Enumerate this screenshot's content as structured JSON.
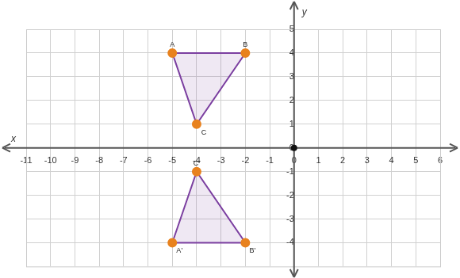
{
  "chart_data": {
    "type": "scatter",
    "xlabel": "x",
    "ylabel": "y",
    "xlim": [
      -11,
      6
    ],
    "ylim": [
      -5,
      5
    ],
    "xticks": [
      -11,
      -10,
      -9,
      -8,
      -7,
      -6,
      -5,
      -4,
      -3,
      -2,
      -1,
      0,
      1,
      2,
      3,
      4,
      5,
      6
    ],
    "yticks": [
      -4,
      -3,
      -2,
      -1,
      0,
      1,
      2,
      3,
      4,
      5
    ],
    "grid": true,
    "series": [
      {
        "color": "#7b3fa0",
        "marker": "circle",
        "x": [
          -5,
          -2,
          -4
        ],
        "values": [
          4,
          4,
          1
        ],
        "point_labels": [
          "A",
          "B",
          "C"
        ]
      },
      {
        "color": "#7b3fa0",
        "marker": "circle",
        "x": [
          -5,
          -2,
          -4
        ],
        "values": [
          -4,
          -4,
          -1
        ],
        "point_labels": [
          "A'",
          "B'",
          "C'"
        ]
      }
    ]
  }
}
